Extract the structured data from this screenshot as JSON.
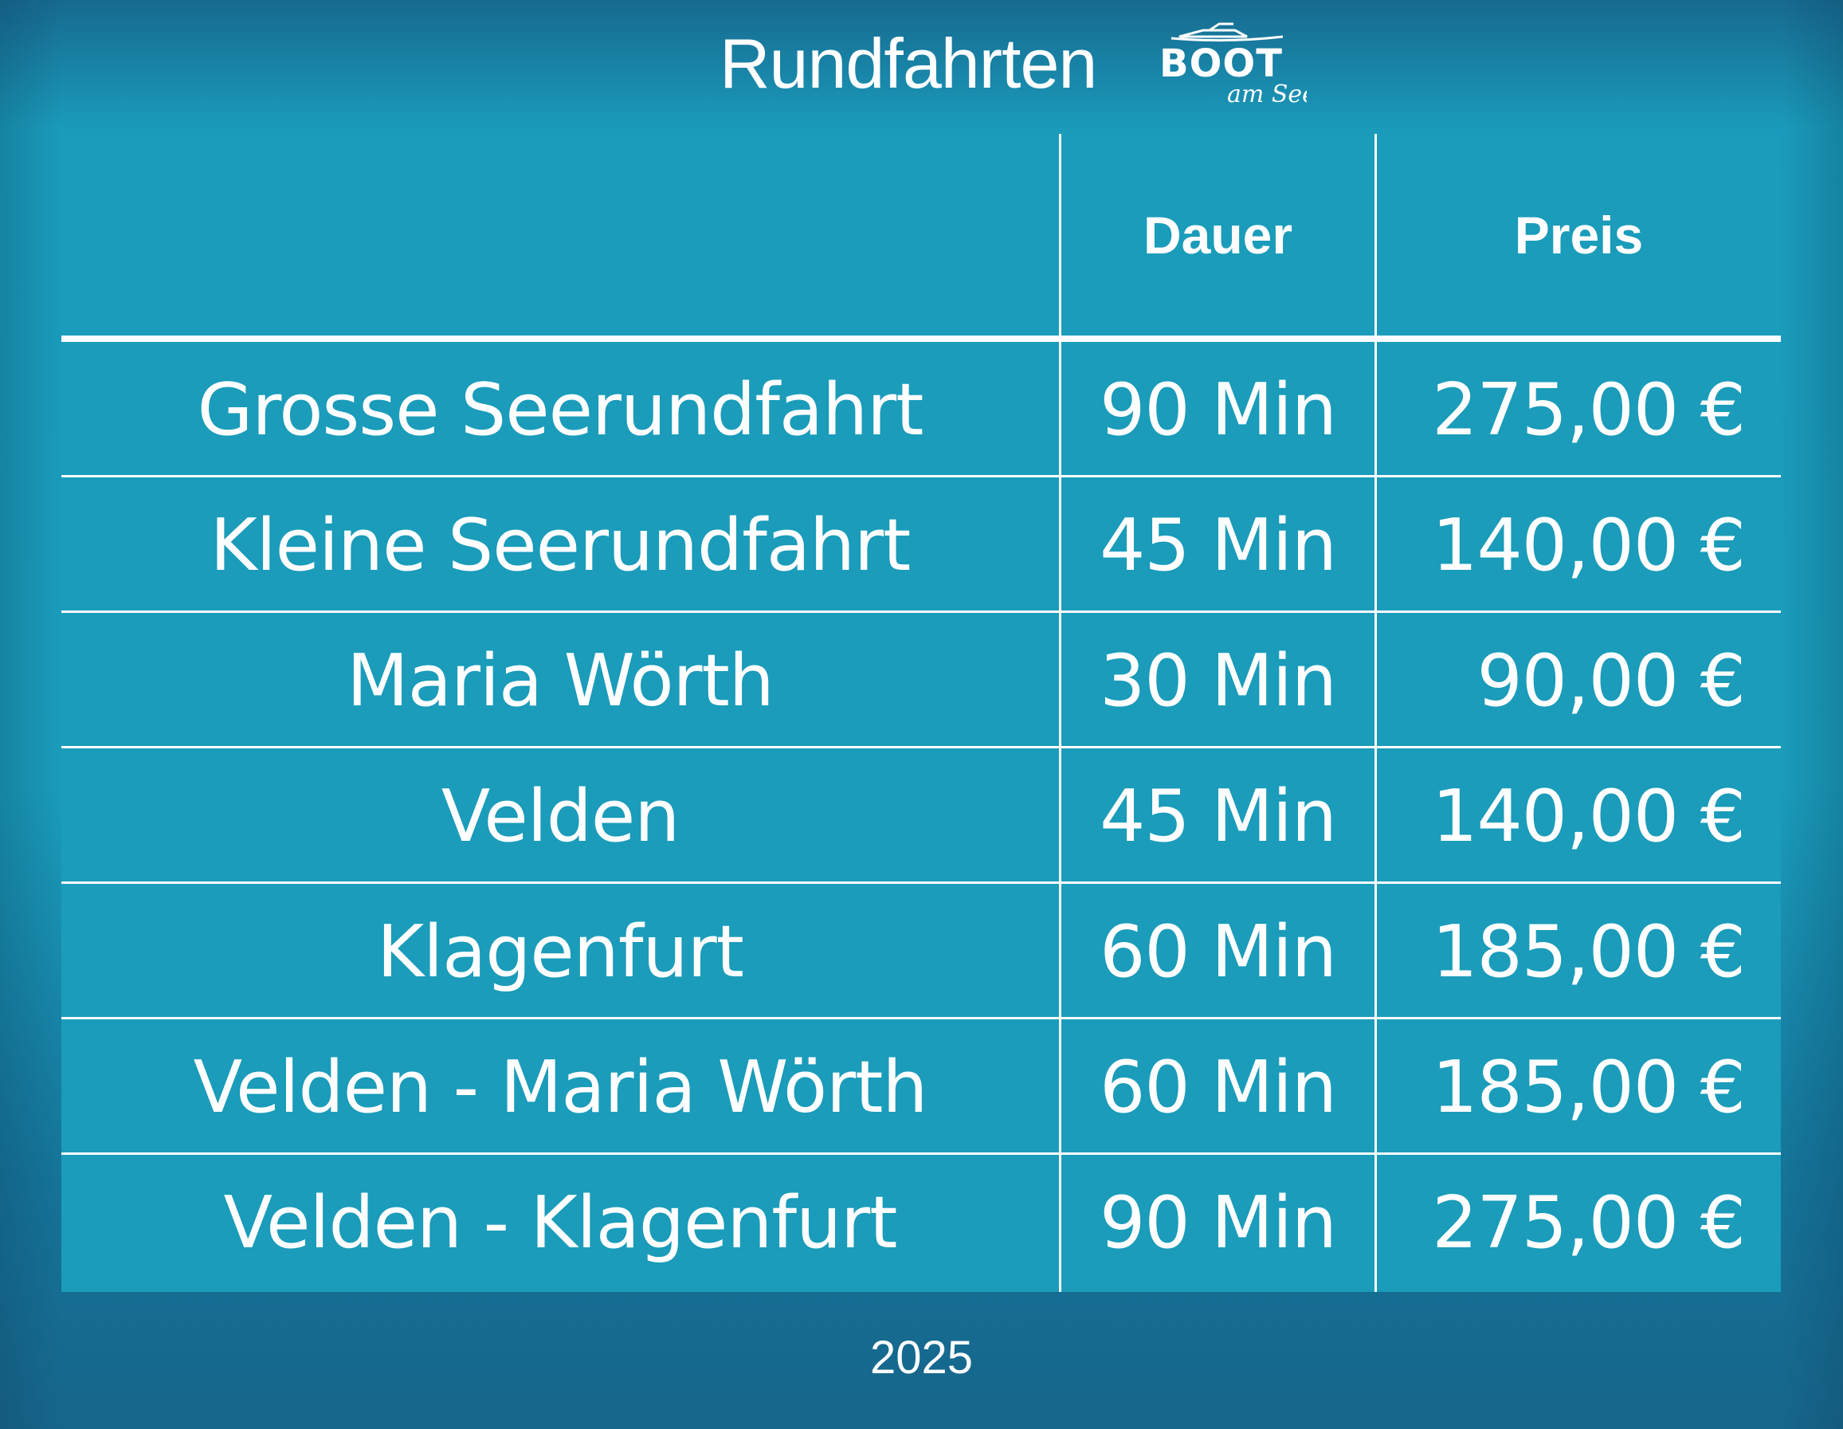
{
  "header": {
    "title": "Rundfahrten",
    "logo": {
      "main": "BOOT",
      "sub": "am See"
    }
  },
  "table": {
    "columns": [
      "",
      "Dauer",
      "Preis"
    ],
    "rows": [
      {
        "name": "Grosse Seerundfahrt",
        "dauer": "90 Min",
        "preis": "275,00 €"
      },
      {
        "name": "Kleine Seerundfahrt",
        "dauer": "45 Min",
        "preis": "140,00 €"
      },
      {
        "name": "Maria Wörth",
        "dauer": "30 Min",
        "preis": "90,00 €"
      },
      {
        "name": "Velden",
        "dauer": "45 Min",
        "preis": "140,00 €"
      },
      {
        "name": "Klagenfurt",
        "dauer": "60 Min",
        "preis": "185,00 €"
      },
      {
        "name": "Velden - Maria Wörth",
        "dauer": "60 Min",
        "preis": "185,00 €"
      },
      {
        "name": "Velden - Klagenfurt",
        "dauer": "90 Min",
        "preis": "275,00 €"
      }
    ]
  },
  "footer": {
    "year": "2025"
  },
  "colors": {
    "background": "#1a9cbb",
    "background_edge": "#17698f",
    "table_fill": "#1a9cba",
    "lines": "#ffffff",
    "text": "#ffffff"
  }
}
